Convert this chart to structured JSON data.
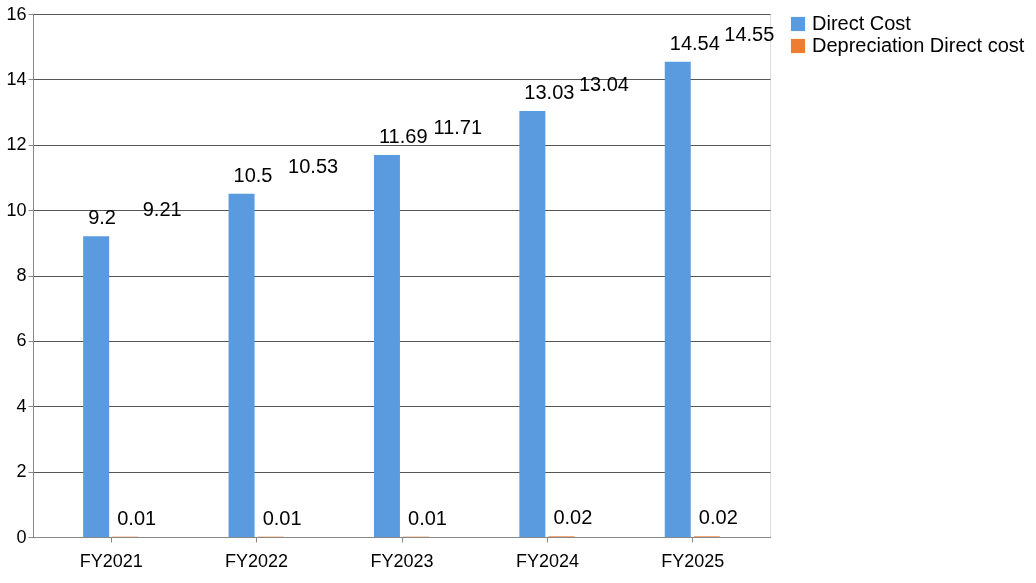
{
  "chart_data": {
    "type": "bar",
    "categories": [
      "FY2021",
      "FY2022",
      "FY2023",
      "FY2024",
      "FY2025"
    ],
    "series": [
      {
        "name": "Direct Cost",
        "color": "#5a9be0",
        "values": [
          9.2,
          10.5,
          11.69,
          13.03,
          14.54
        ]
      },
      {
        "name": "Depreciation Direct cost",
        "color": "#ed7d31",
        "values": [
          0.01,
          0.01,
          0.01,
          0.02,
          0.02
        ]
      }
    ],
    "ylim": [
      0,
      16
    ],
    "yticks": [
      0,
      2,
      4,
      6,
      8,
      10,
      12,
      14,
      16
    ],
    "grid": "y",
    "legend": "right",
    "data_labels": true,
    "annotations": [
      {
        "text": "9.21",
        "x": "FY2021",
        "y": 9.21
      },
      {
        "text": "10.53",
        "x": "FY2022",
        "y": 10.53
      },
      {
        "text": "11.71",
        "x": "FY2023",
        "y": 11.71
      },
      {
        "text": "13.04",
        "x": "FY2024",
        "y": 13.04
      },
      {
        "text": "14.55",
        "x": "FY2025",
        "y": 14.55
      }
    ]
  }
}
